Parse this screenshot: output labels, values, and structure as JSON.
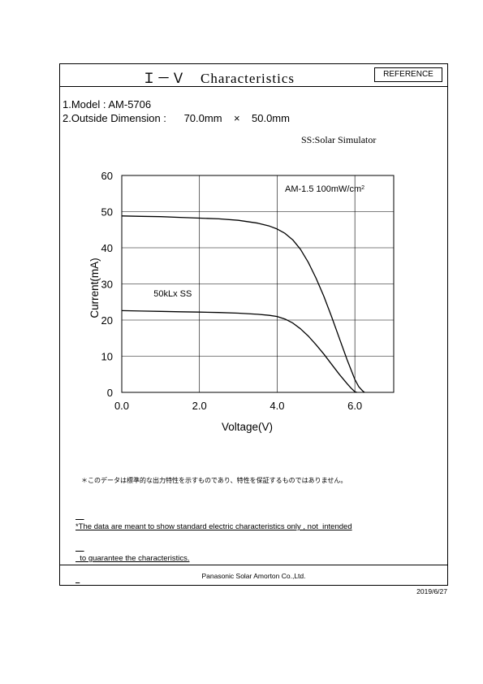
{
  "header": {
    "title": "Ｉ－Ｖ　Characteristics",
    "reference_label": "REFERENCE"
  },
  "specs": {
    "model": "1.Model : AM-5706",
    "dimension": "2.Outside Dimension :      70.0mm    ×    50.0mm"
  },
  "ss_note": "SS:Solar Simulator",
  "chart_data": {
    "type": "line",
    "xlabel": "Voltage(V)",
    "ylabel": "Current(mA)",
    "xlim": [
      0,
      7
    ],
    "ylim": [
      0,
      60
    ],
    "x_ticks": [
      0,
      2,
      4,
      6
    ],
    "x_tick_labels": [
      "0.0",
      "2.0",
      "4.0",
      "6.0"
    ],
    "y_ticks": [
      0,
      10,
      20,
      30,
      40,
      50,
      60
    ],
    "y_tick_labels": [
      "0",
      "10",
      "20",
      "30",
      "40",
      "50",
      "60"
    ],
    "grid": true,
    "series": [
      {
        "name": "AM-1.5 100mW/cm2",
        "label_main": "AM-1.5 100mW/cm",
        "label_sup": "2",
        "label_at": [
          4.2,
          55.5
        ],
        "x": [
          0,
          0.5,
          1.0,
          1.5,
          2.0,
          2.5,
          3.0,
          3.5,
          3.8,
          4.0,
          4.2,
          4.4,
          4.6,
          4.8,
          5.0,
          5.2,
          5.4,
          5.6,
          5.8,
          6.0,
          6.1,
          6.2,
          6.25
        ],
        "y": [
          48.8,
          48.7,
          48.6,
          48.4,
          48.2,
          48.0,
          47.6,
          46.8,
          46.0,
          45.2,
          44.0,
          42.2,
          39.6,
          36.0,
          31.6,
          26.6,
          21.0,
          15.0,
          9.0,
          3.6,
          1.6,
          0.4,
          0
        ]
      },
      {
        "name": "50kLx  SS",
        "label_main": "50kLx  SS",
        "label_sup": "",
        "label_at": [
          0.82,
          26.5
        ],
        "x": [
          0,
          0.5,
          1.0,
          1.5,
          2.0,
          2.5,
          3.0,
          3.5,
          3.8,
          4.0,
          4.2,
          4.4,
          4.6,
          4.8,
          5.0,
          5.2,
          5.4,
          5.6,
          5.8,
          5.9,
          6.0,
          6.05
        ],
        "y": [
          22.6,
          22.5,
          22.4,
          22.3,
          22.2,
          22.1,
          21.9,
          21.6,
          21.3,
          21.0,
          20.3,
          19.2,
          17.6,
          15.6,
          13.2,
          10.6,
          7.8,
          5.0,
          2.4,
          1.2,
          0.2,
          0
        ]
      }
    ]
  },
  "notes": {
    "jp": "＊このデータは標準的な出力特性を示すものであり、特性を保証するものではありません。",
    "en_line1": "*The data are meant to show standard electric characteristics only , not  intended",
    "en_line2": "  to guarantee the characteristics."
  },
  "footer": {
    "company": "Panasonic  Solar Amorton Co.,Ltd."
  },
  "date": "2019/6/27"
}
